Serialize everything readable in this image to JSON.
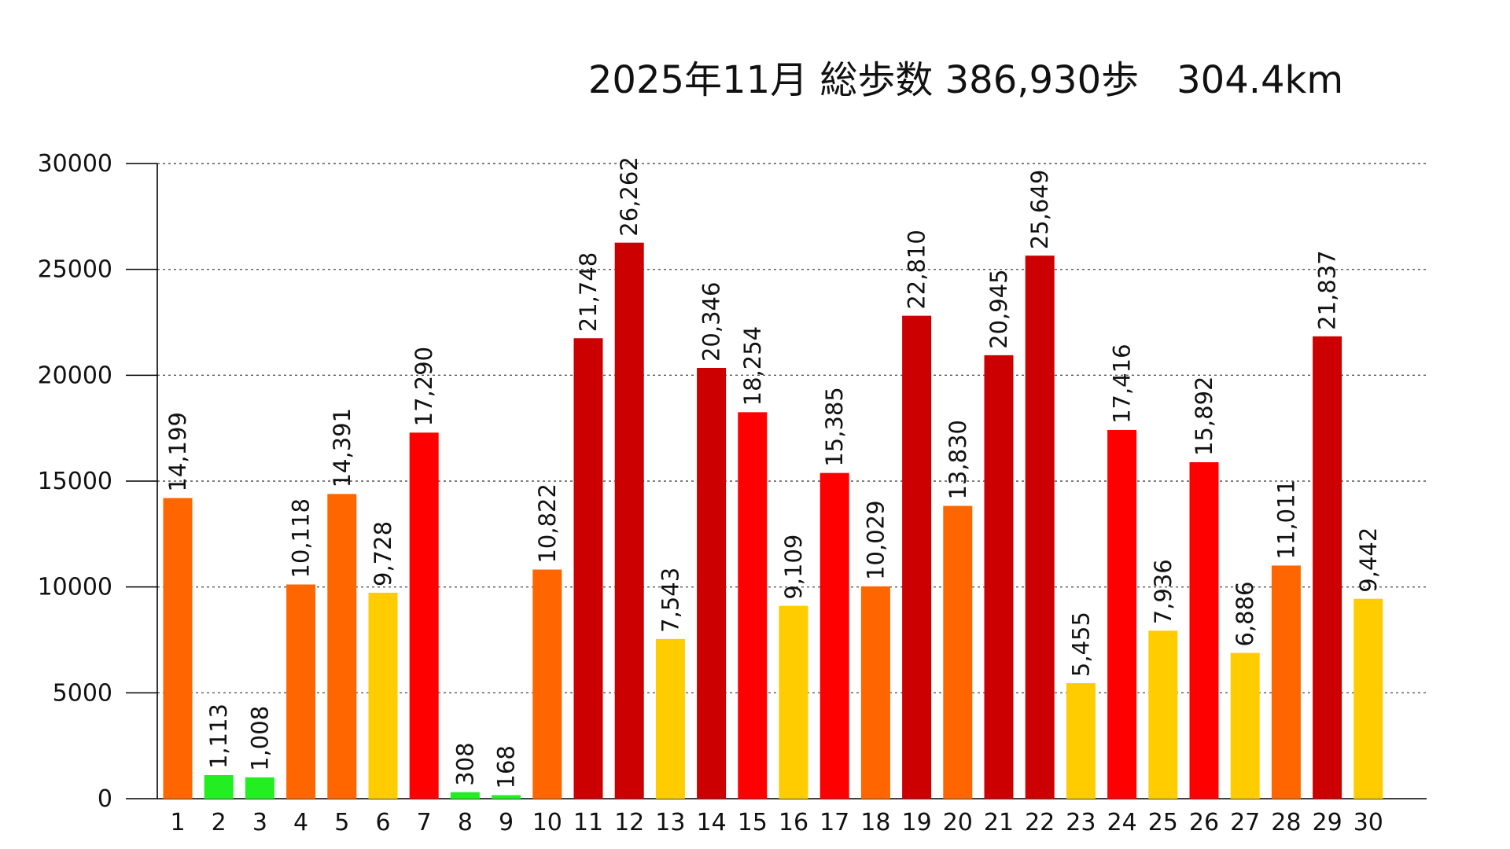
{
  "chart_data": {
    "type": "bar",
    "title": "2025年11月 総歩数 386,930歩　304.4km",
    "xlabel": "",
    "ylabel": "",
    "ylim": [
      0,
      30000
    ],
    "yticks": [
      0,
      5000,
      10000,
      15000,
      20000,
      25000,
      30000
    ],
    "ytick_labels": [
      "0",
      "5000",
      "10000",
      "15000",
      "20000",
      "25000",
      "30000"
    ],
    "grid": true,
    "categories": [
      "1",
      "2",
      "3",
      "4",
      "5",
      "6",
      "7",
      "8",
      "9",
      "10",
      "11",
      "12",
      "13",
      "14",
      "15",
      "16",
      "17",
      "18",
      "19",
      "20",
      "21",
      "22",
      "23",
      "24",
      "25",
      "26",
      "27",
      "28",
      "29",
      "30"
    ],
    "values": [
      14199,
      1113,
      1008,
      10118,
      14391,
      9728,
      17290,
      308,
      168,
      10822,
      21748,
      26262,
      7543,
      20346,
      18254,
      9109,
      15385,
      10029,
      22810,
      13830,
      20945,
      25649,
      5455,
      17416,
      7936,
      15892,
      6886,
      11011,
      21837,
      9442
    ],
    "value_labels": [
      "14,199",
      "1,113",
      "1,008",
      "10,118",
      "14,391",
      "9,728",
      "17,290",
      "308",
      "168",
      "10,822",
      "21,748",
      "26,262",
      "7,543",
      "20,346",
      "18,254",
      "9,109",
      "15,385",
      "10,029",
      "22,810",
      "13,830",
      "20,945",
      "25,649",
      "5,455",
      "17,416",
      "7,936",
      "15,892",
      "6,886",
      "11,011",
      "21,837",
      "9,442"
    ],
    "color_scale": [
      {
        "min": 0,
        "max": 5000,
        "color": "#22ee22"
      },
      {
        "min": 5000,
        "max": 10000,
        "color": "#ffcc00"
      },
      {
        "min": 10000,
        "max": 15000,
        "color": "#ff6600"
      },
      {
        "min": 15000,
        "max": 20000,
        "color": "#ff0000"
      },
      {
        "min": 20000,
        "max": 100000,
        "color": "#cc0000"
      }
    ],
    "colors": {
      "axis": "#000000",
      "grid": "#555555",
      "text": "#111111"
    }
  }
}
